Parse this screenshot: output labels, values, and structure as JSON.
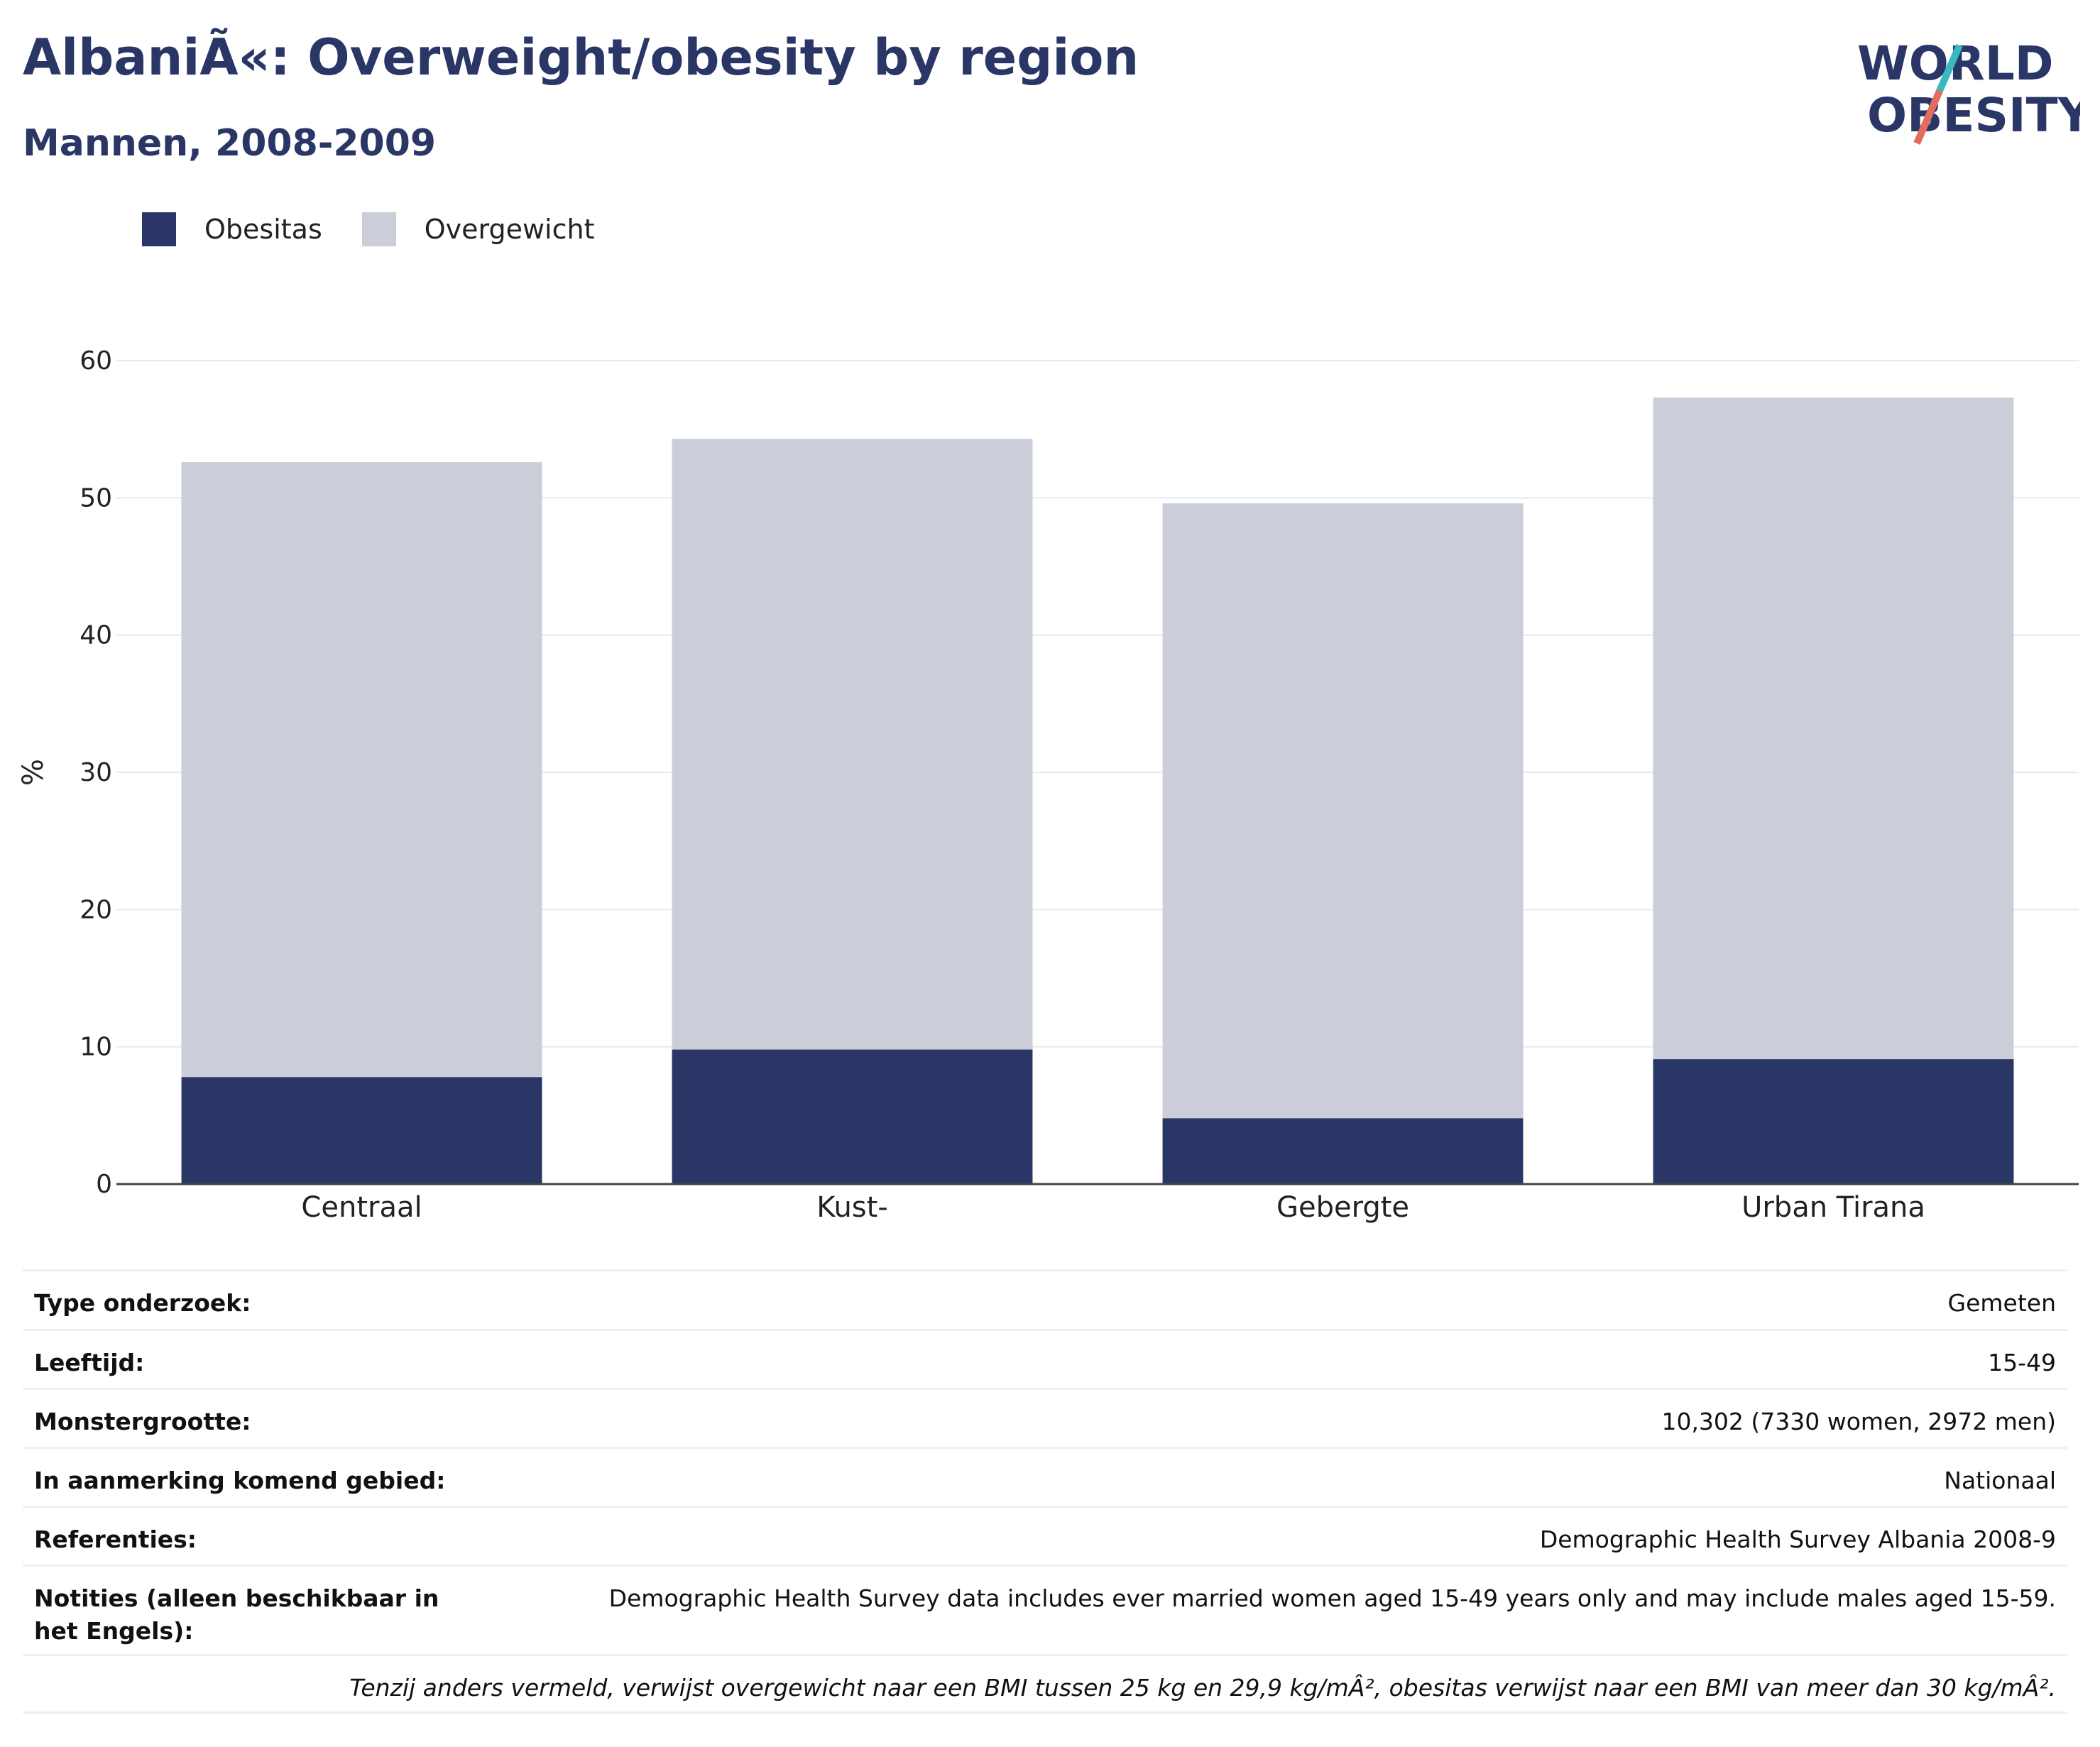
{
  "header": {
    "title": "AlbaniÃ«: Overweight/obesity by region",
    "subtitle": "Mannen, 2008-2009"
  },
  "logo": {
    "line1": "WORLD",
    "line2": "OBESITY"
  },
  "colors": {
    "obesitas": "#2a3766",
    "overgewicht": "#cbcdd9",
    "title": "#2a3766",
    "accent_teal": "#3ab8c0",
    "accent_red": "#e46c5e"
  },
  "chart_data": {
    "type": "bar",
    "stacked": true,
    "categories": [
      "Centraal",
      "Kust-",
      "Gebergte",
      "Urban Tirana"
    ],
    "series": [
      {
        "name": "Obesitas",
        "values": [
          7.8,
          9.8,
          4.8,
          9.1
        ]
      },
      {
        "name": "Overgewicht",
        "values": [
          44.8,
          44.5,
          44.8,
          48.2
        ]
      }
    ],
    "ylabel": "%",
    "ylim": [
      0,
      60
    ],
    "yticks": [
      0,
      10,
      20,
      30,
      40,
      50,
      60
    ],
    "grid": true,
    "legend": "top-left"
  },
  "table": {
    "rows": [
      {
        "key": "Type onderzoek:",
        "value": "Gemeten"
      },
      {
        "key": "Leeftijd:",
        "value": "15-49"
      },
      {
        "key": "Monstergrootte:",
        "value": "10,302 (7330 women, 2972 men)"
      },
      {
        "key": "In aanmerking komend gebied:",
        "value": "Nationaal"
      },
      {
        "key": "Referenties:",
        "value": "Demographic Health Survey Albania 2008-9"
      },
      {
        "key": "Notities (alleen beschikbaar in het Engels):",
        "value": "Demographic Health Survey data includes ever married women aged 15-49 years only and may include males aged 15-59."
      }
    ],
    "footnote": "Tenzij anders vermeld, verwijst overgewicht naar een BMI tussen 25 kg en 29,9 kg/mÂ², obesitas verwijst naar een BMI van meer dan 30 kg/mÂ²."
  }
}
